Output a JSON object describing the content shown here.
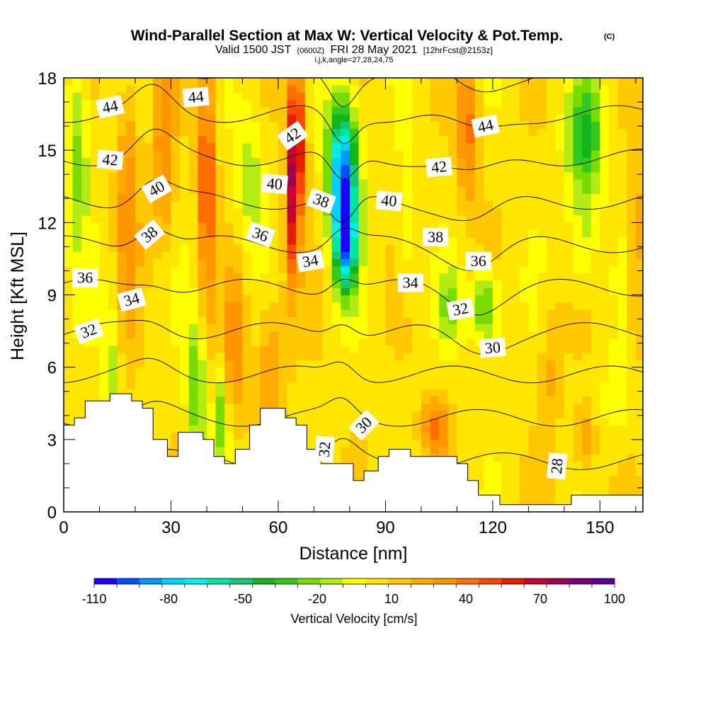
{
  "chart_data": {
    "type": "heatmap",
    "title": "Wind-Parallel Section at Max W: Vertical Velocity & Pot.Temp.",
    "title_mark": "(C)",
    "subtitle_parts": [
      "Valid 1500 JST",
      "(0600Z)",
      "FRI 28 May 2021",
      "[12hrFcst@2153z]"
    ],
    "subtitle2": "i,j,k,angle=27,28,24,75",
    "xlabel": "Distance [nm]",
    "ylabel": "Height [Kft MSL]",
    "xlim": [
      0,
      162
    ],
    "ylim": [
      0,
      18
    ],
    "x_ticks": [
      0,
      30,
      60,
      90,
      120,
      150
    ],
    "y_ticks": [
      0,
      3,
      6,
      9,
      12,
      15,
      18
    ],
    "colorbar": {
      "label": "Vertical Velocity [cm/s]",
      "tick_labels": [
        "-110",
        "-80",
        "-50",
        "-20",
        "10",
        "40",
        "70",
        "100"
      ],
      "range": [
        -110,
        100
      ],
      "colors": [
        "#1e00ff",
        "#0050ff",
        "#0096ff",
        "#00d2ff",
        "#00f0e6",
        "#00e6a0",
        "#14c878",
        "#14b41e",
        "#32c81e",
        "#78dc00",
        "#b4eb14",
        "#ffff00",
        "#ffe600",
        "#ffc800",
        "#ffaa00",
        "#ff9600",
        "#ff6e00",
        "#ff4600",
        "#e61e00",
        "#c80032",
        "#a00050",
        "#780078",
        "#5a0096"
      ]
    },
    "contour_labels": [
      {
        "text": "44",
        "x": 13,
        "y": 16.8,
        "rot": -12
      },
      {
        "text": "44",
        "x": 37,
        "y": 17.2,
        "rot": -5
      },
      {
        "text": "44",
        "x": 118,
        "y": 16.0,
        "rot": -12
      },
      {
        "text": "42",
        "x": 13,
        "y": 14.6,
        "rot": 5
      },
      {
        "text": "42",
        "x": 64,
        "y": 15.6,
        "rot": -35
      },
      {
        "text": "42",
        "x": 105,
        "y": 14.3,
        "rot": -5
      },
      {
        "text": "40",
        "x": 26,
        "y": 13.4,
        "rot": -30
      },
      {
        "text": "40",
        "x": 59,
        "y": 13.6,
        "rot": 5
      },
      {
        "text": "40",
        "x": 91,
        "y": 12.9,
        "rot": 5
      },
      {
        "text": "38",
        "x": 24,
        "y": 11.5,
        "rot": -40
      },
      {
        "text": "38",
        "x": 72,
        "y": 12.9,
        "rot": 20
      },
      {
        "text": "38",
        "x": 104,
        "y": 11.4,
        "rot": 0
      },
      {
        "text": "36",
        "x": 6,
        "y": 9.7,
        "rot": 0
      },
      {
        "text": "36",
        "x": 55,
        "y": 11.5,
        "rot": 20
      },
      {
        "text": "36",
        "x": 116,
        "y": 10.4,
        "rot": 0
      },
      {
        "text": "34",
        "x": 19,
        "y": 8.8,
        "rot": -15
      },
      {
        "text": "34",
        "x": 69,
        "y": 10.4,
        "rot": -10
      },
      {
        "text": "34",
        "x": 97,
        "y": 9.5,
        "rot": 0
      },
      {
        "text": "32",
        "x": 7,
        "y": 7.5,
        "rot": -20
      },
      {
        "text": "32",
        "x": 111,
        "y": 8.4,
        "rot": -10
      },
      {
        "text": "32",
        "x": 73,
        "y": 2.6,
        "rot": -85
      },
      {
        "text": "30",
        "x": 120,
        "y": 6.8,
        "rot": -5
      },
      {
        "text": "30",
        "x": 84,
        "y": 3.6,
        "rot": -45
      },
      {
        "text": "28",
        "x": 138,
        "y": 1.9,
        "rot": -85
      }
    ],
    "terrain": [
      [
        0,
        3.6
      ],
      [
        3,
        3.6
      ],
      [
        3,
        3.9
      ],
      [
        6,
        3.9
      ],
      [
        6,
        4.6
      ],
      [
        13,
        4.6
      ],
      [
        13,
        4.9
      ],
      [
        19,
        4.9
      ],
      [
        19,
        4.6
      ],
      [
        22,
        4.6
      ],
      [
        22,
        4.3
      ],
      [
        25,
        4.3
      ],
      [
        25,
        3.0
      ],
      [
        29,
        3.0
      ],
      [
        29,
        2.3
      ],
      [
        32,
        2.3
      ],
      [
        32,
        3.3
      ],
      [
        39,
        3.3
      ],
      [
        39,
        3.0
      ],
      [
        42,
        3.0
      ],
      [
        42,
        2.3
      ],
      [
        45,
        2.3
      ],
      [
        45,
        2.0
      ],
      [
        48,
        2.0
      ],
      [
        48,
        2.6
      ],
      [
        52,
        2.6
      ],
      [
        52,
        3.6
      ],
      [
        55,
        3.6
      ],
      [
        55,
        4.3
      ],
      [
        62,
        4.3
      ],
      [
        62,
        3.9
      ],
      [
        65,
        3.9
      ],
      [
        65,
        3.6
      ],
      [
        68,
        3.6
      ],
      [
        68,
        2.6
      ],
      [
        72,
        2.6
      ],
      [
        72,
        2.0
      ],
      [
        81,
        2.0
      ],
      [
        81,
        1.3
      ],
      [
        84,
        1.3
      ],
      [
        84,
        1.7
      ],
      [
        88,
        1.7
      ],
      [
        88,
        2.3
      ],
      [
        91,
        2.3
      ],
      [
        91,
        2.6
      ],
      [
        97,
        2.6
      ],
      [
        97,
        2.3
      ],
      [
        110,
        2.3
      ],
      [
        110,
        2.0
      ],
      [
        113,
        2.0
      ],
      [
        113,
        1.3
      ],
      [
        116,
        1.3
      ],
      [
        116,
        0.7
      ],
      [
        122,
        0.7
      ],
      [
        122,
        0.3
      ],
      [
        142,
        0.3
      ],
      [
        142,
        0.7
      ],
      [
        162,
        0.7
      ]
    ]
  }
}
